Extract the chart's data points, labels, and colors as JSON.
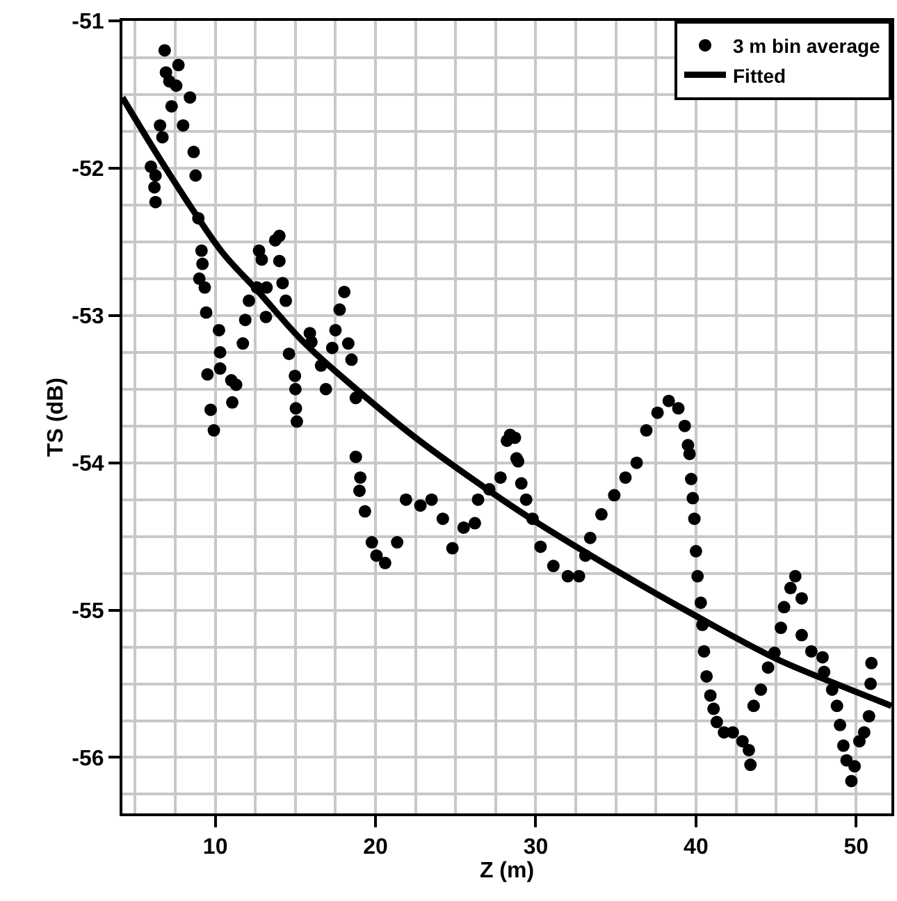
{
  "chart_data": {
    "type": "scatter",
    "xlabel": "Z (m)",
    "ylabel": "TS (dB)",
    "xlim": [
      4.2,
      52.2
    ],
    "ylim": [
      -56.38,
      -51
    ],
    "xticks": [
      {
        "value": 5,
        "label": null
      },
      {
        "value": 7.5,
        "label": null
      },
      10,
      {
        "value": 12.5,
        "label": null
      },
      {
        "value": 15,
        "label": null
      },
      {
        "value": 17.5,
        "label": null
      },
      20,
      {
        "value": 22.5,
        "label": null
      },
      {
        "value": 25,
        "label": null
      },
      {
        "value": 27.5,
        "label": null
      },
      30,
      {
        "value": 32.5,
        "label": null
      },
      {
        "value": 35,
        "label": null
      },
      {
        "value": 37.5,
        "label": null
      },
      40,
      {
        "value": 42.5,
        "label": null
      },
      {
        "value": 45,
        "label": null
      },
      {
        "value": 47.5,
        "label": null
      },
      50
    ],
    "yticks": [
      -51,
      {
        "value": -51.25,
        "label": null
      },
      {
        "value": -51.5,
        "label": null
      },
      {
        "value": -51.75,
        "label": null
      },
      -52,
      {
        "value": -52.25,
        "label": null
      },
      {
        "value": -52.5,
        "label": null
      },
      {
        "value": -52.75,
        "label": null
      },
      -53,
      {
        "value": -53.25,
        "label": null
      },
      {
        "value": -53.5,
        "label": null
      },
      {
        "value": -53.75,
        "label": null
      },
      -54,
      {
        "value": -54.25,
        "label": null
      },
      {
        "value": -54.5,
        "label": null
      },
      {
        "value": -54.75,
        "label": null
      },
      -55,
      {
        "value": -55.25,
        "label": null
      },
      {
        "value": -55.5,
        "label": null
      },
      {
        "value": -55.75,
        "label": null
      },
      -56,
      {
        "value": -56.25,
        "label": null
      }
    ],
    "grid": true,
    "legend": "top right",
    "series": [
      {
        "name": "3 m bin average",
        "marker": "circle",
        "color": "#000000",
        "x": [
          5.98,
          6.2,
          6.27,
          6.27,
          6.55,
          6.7,
          6.84,
          6.92,
          7.13,
          7.27,
          7.56,
          7.7,
          7.99,
          8.42,
          8.65,
          8.77,
          8.94,
          9.0,
          9.14,
          9.2,
          9.34,
          9.43,
          9.51,
          9.71,
          9.91,
          10.23,
          10.3,
          10.3,
          11.0,
          11.06,
          11.3,
          11.72,
          11.87,
          12.1,
          12.6,
          12.73,
          12.9,
          13.16,
          13.2,
          13.74,
          14.0,
          14.0,
          14.2,
          14.4,
          14.6,
          14.97,
          15.0,
          15.03,
          15.09,
          15.9,
          16.0,
          16.6,
          16.9,
          17.3,
          17.5,
          17.76,
          18.05,
          18.3,
          18.5,
          18.77,
          18.77,
          19.0,
          19.05,
          19.34,
          19.77,
          20.06,
          20.6,
          21.35,
          21.9,
          22.8,
          23.5,
          24.2,
          24.8,
          25.5,
          26.2,
          26.4,
          27.1,
          27.8,
          28.2,
          28.4,
          28.7,
          28.8,
          28.9,
          29.1,
          29.4,
          29.8,
          30.3,
          31.1,
          32.0,
          32.7,
          33.1,
          33.4,
          34.1,
          34.9,
          35.6,
          36.3,
          36.9,
          37.6,
          38.3,
          38.9,
          39.3,
          39.5,
          39.6,
          39.7,
          39.8,
          39.9,
          40.0,
          40.1,
          40.3,
          40.4,
          40.5,
          40.66,
          40.9,
          41.1,
          41.3,
          41.75,
          42.3,
          42.9,
          43.3,
          43.4,
          43.6,
          44.05,
          44.5,
          44.9,
          45.3,
          45.5,
          45.9,
          46.2,
          46.6,
          46.6,
          47.2,
          47.9,
          48.0,
          48.5,
          48.8,
          48.99,
          49.2,
          49.4,
          49.7,
          49.9,
          50.2,
          50.5,
          50.8,
          50.9,
          50.95
        ],
        "values": [
          -51.99,
          -52.13,
          -52.05,
          -52.23,
          -51.71,
          -51.79,
          -51.2,
          -51.35,
          -51.41,
          -51.58,
          -51.44,
          -51.3,
          -51.71,
          -51.52,
          -51.89,
          -52.05,
          -52.34,
          -52.75,
          -52.56,
          -52.65,
          -52.81,
          -52.98,
          -53.4,
          -53.64,
          -53.78,
          -53.1,
          -53.25,
          -53.36,
          -53.44,
          -53.59,
          -53.47,
          -53.19,
          -53.03,
          -52.9,
          -52.81,
          -52.56,
          -52.62,
          -53.01,
          -52.81,
          -52.49,
          -52.46,
          -52.63,
          -52.78,
          -52.9,
          -53.26,
          -53.41,
          -53.5,
          -53.63,
          -53.72,
          -53.12,
          -53.18,
          -53.34,
          -53.5,
          -53.22,
          -53.1,
          -52.96,
          -52.84,
          -53.19,
          -53.3,
          -53.56,
          -53.96,
          -54.19,
          -54.1,
          -54.33,
          -54.54,
          -54.63,
          -54.68,
          -54.54,
          -54.25,
          -54.29,
          -54.25,
          -54.38,
          -54.58,
          -54.44,
          -54.41,
          -54.25,
          -54.18,
          -54.1,
          -53.85,
          -53.81,
          -53.83,
          -53.97,
          -53.99,
          -54.14,
          -54.25,
          -54.38,
          -54.57,
          -54.7,
          -54.77,
          -54.77,
          -54.63,
          -54.51,
          -54.35,
          -54.22,
          -54.1,
          -54.0,
          -53.78,
          -53.66,
          -53.58,
          -53.63,
          -53.75,
          -53.88,
          -53.94,
          -54.11,
          -54.24,
          -54.38,
          -54.6,
          -54.77,
          -54.95,
          -55.1,
          -55.28,
          -55.45,
          -55.58,
          -55.67,
          -55.76,
          -55.83,
          -55.83,
          -55.89,
          -55.95,
          -56.05,
          -55.65,
          -55.54,
          -55.39,
          -55.29,
          -55.12,
          -54.98,
          -54.85,
          -54.77,
          -54.92,
          -55.17,
          -55.28,
          -55.32,
          -55.42,
          -55.54,
          -55.65,
          -55.78,
          -55.92,
          -56.02,
          -56.16,
          -56.06,
          -55.89,
          -55.83,
          -55.72,
          -55.5,
          -55.36
        ]
      },
      {
        "name": "Fitted",
        "type": "line",
        "marker": "none",
        "line_style": "solid",
        "color": "#000000",
        "x": [
          4.2,
          6.5,
          8.7,
          10.5,
          12.7,
          15.5,
          18.8,
          22.5,
          27.1,
          30.0,
          35.0,
          40.0,
          45.0,
          48.5,
          52.2
        ],
        "values": [
          -51.52,
          -51.93,
          -52.3,
          -52.58,
          -52.84,
          -53.18,
          -53.5,
          -53.83,
          -54.19,
          -54.4,
          -54.73,
          -55.04,
          -55.33,
          -55.49,
          -55.65
        ]
      }
    ]
  }
}
